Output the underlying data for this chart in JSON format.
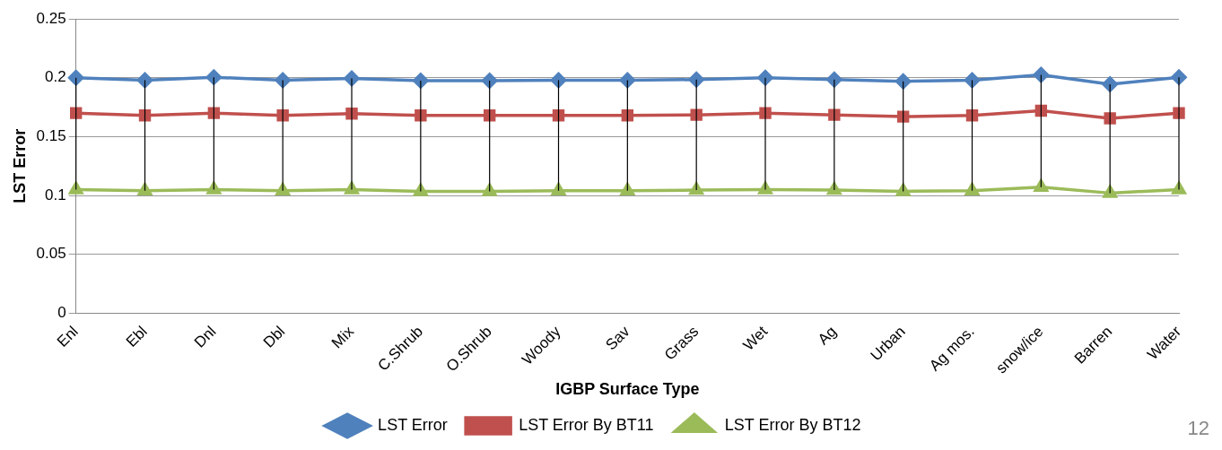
{
  "chart_data": {
    "type": "line",
    "xlabel": "IGBP Surface Type",
    "ylabel": "LST Error",
    "categories": [
      "Enl",
      "Ebl",
      "Dnl",
      "Dbl",
      "Mix",
      "C.Shrub",
      "O.Shrub",
      "Woody",
      "Sav",
      "Grass",
      "Wet",
      "Ag",
      "Urban",
      "Ag mos.",
      "snow/ice",
      "Barren",
      "Water"
    ],
    "series": [
      {
        "name": "LST Error",
        "color": "#4f81bd",
        "marker": "diamond",
        "values": [
          0.2,
          0.198,
          0.2005,
          0.198,
          0.1995,
          0.1975,
          0.1975,
          0.198,
          0.198,
          0.1985,
          0.2,
          0.1985,
          0.197,
          0.198,
          0.2025,
          0.1945,
          0.2005
        ],
        "errors": [
          [
            0.105,
            0.2
          ],
          [
            0.104,
            0.198
          ],
          [
            0.105,
            0.2005
          ],
          [
            0.104,
            0.198
          ],
          [
            0.105,
            0.1995
          ],
          [
            0.1035,
            0.1975
          ],
          [
            0.1035,
            0.1975
          ],
          [
            0.104,
            0.198
          ],
          [
            0.104,
            0.198
          ],
          [
            0.1045,
            0.1985
          ],
          [
            0.105,
            0.2
          ],
          [
            0.1045,
            0.1985
          ],
          [
            0.1035,
            0.197
          ],
          [
            0.104,
            0.198
          ],
          [
            0.107,
            0.2025
          ],
          [
            0.102,
            0.1945
          ],
          [
            0.105,
            0.2005
          ]
        ]
      },
      {
        "name": "LST Error By BT11",
        "color": "#c0504d",
        "marker": "square",
        "values": [
          0.17,
          0.168,
          0.17,
          0.168,
          0.1695,
          0.168,
          0.168,
          0.168,
          0.168,
          0.1685,
          0.17,
          0.1685,
          0.167,
          0.168,
          0.172,
          0.1655,
          0.17
        ]
      },
      {
        "name": "LST Error By BT12",
        "color": "#9bbb59",
        "marker": "triangle",
        "values": [
          0.105,
          0.104,
          0.105,
          0.104,
          0.105,
          0.1035,
          0.1035,
          0.104,
          0.104,
          0.1045,
          0.105,
          0.1045,
          0.1035,
          0.104,
          0.107,
          0.102,
          0.105
        ]
      }
    ],
    "ylim": [
      0,
      0.25
    ],
    "yticks": [
      0,
      0.05,
      0.1,
      0.15,
      0.2,
      0.25
    ],
    "grid": "y",
    "legend": "bottom",
    "line_style": "solid",
    "annotations": [
      "12"
    ]
  }
}
